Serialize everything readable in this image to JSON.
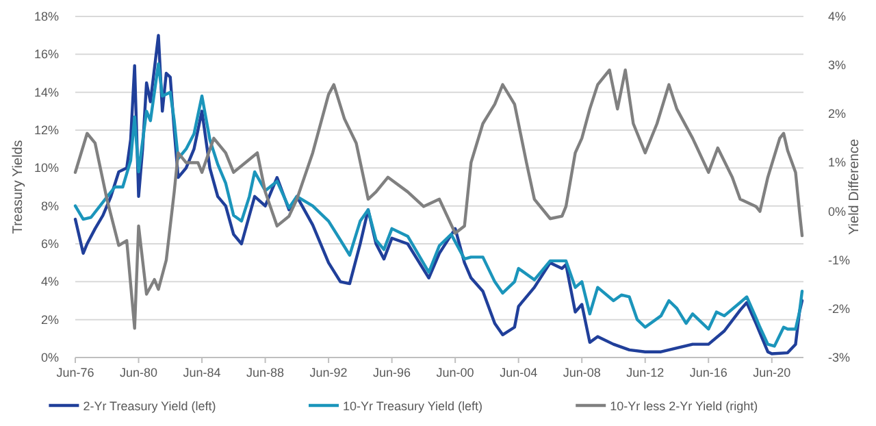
{
  "chart_data": {
    "type": "line",
    "ylabel": "Treasury Yields",
    "y2label": "Yield Difference",
    "xlim": [
      "1976-06",
      "2022-06"
    ],
    "xticks": [
      {
        "value": "1976-06",
        "label": "Jun-76"
      },
      {
        "value": "1980-06",
        "label": "Jun-80"
      },
      {
        "value": "1984-06",
        "label": "Jun-84"
      },
      {
        "value": "1988-06",
        "label": "Jun-88"
      },
      {
        "value": "1992-06",
        "label": "Jun-92"
      },
      {
        "value": "1996-06",
        "label": "Jun-96"
      },
      {
        "value": "2000-06",
        "label": "Jun-00"
      },
      {
        "value": "2004-06",
        "label": "Jun-04"
      },
      {
        "value": "2008-06",
        "label": "Jun-08"
      },
      {
        "value": "2012-06",
        "label": "Jun-12"
      },
      {
        "value": "2016-06",
        "label": "Jun-16"
      },
      {
        "value": "2020-06",
        "label": "Jun-20"
      }
    ],
    "ylim": [
      0,
      18
    ],
    "yticks": [
      {
        "value": 0,
        "label": "0%"
      },
      {
        "value": 2,
        "label": "2%"
      },
      {
        "value": 4,
        "label": "4%"
      },
      {
        "value": 6,
        "label": "6%"
      },
      {
        "value": 8,
        "label": "8%"
      },
      {
        "value": 10,
        "label": "10%"
      },
      {
        "value": 12,
        "label": "12%"
      },
      {
        "value": 14,
        "label": "14%"
      },
      {
        "value": 16,
        "label": "16%"
      },
      {
        "value": 18,
        "label": "18%"
      }
    ],
    "y2lim": [
      -3,
      4
    ],
    "y2ticks": [
      {
        "value": -3,
        "label": "-3%"
      },
      {
        "value": -2,
        "label": "-2%"
      },
      {
        "value": -1,
        "label": "-1%"
      },
      {
        "value": 0,
        "label": "0%"
      },
      {
        "value": 1,
        "label": "1%"
      },
      {
        "value": 2,
        "label": "2%"
      },
      {
        "value": 3,
        "label": "3%"
      },
      {
        "value": 4,
        "label": "4%"
      }
    ],
    "grid": "y",
    "legend": "bottom",
    "line_style": "solid",
    "marker": "none",
    "series": [
      {
        "name": "2-Yr Treasury Yield (left)",
        "color": "#203f9a",
        "x": [
          "1976-06",
          "1976-12",
          "1977-03",
          "1977-09",
          "1978-03",
          "1978-09",
          "1979-03",
          "1979-09",
          "1979-12",
          "1980-03",
          "1980-06",
          "1980-09",
          "1980-12",
          "1981-03",
          "1981-09",
          "1981-12",
          "1982-03",
          "1982-06",
          "1982-09",
          "1982-12",
          "1983-06",
          "1983-12",
          "1984-06",
          "1984-12",
          "1985-06",
          "1985-12",
          "1986-06",
          "1986-12",
          "1987-06",
          "1987-10",
          "1988-06",
          "1989-03",
          "1989-12",
          "1990-06",
          "1991-06",
          "1992-06",
          "1993-03",
          "1993-10",
          "1994-06",
          "1994-12",
          "1995-06",
          "1995-12",
          "1996-06",
          "1997-06",
          "1998-10",
          "1999-06",
          "2000-06",
          "2001-01",
          "2001-06",
          "2002-03",
          "2002-12",
          "2003-06",
          "2004-03",
          "2004-06",
          "2005-06",
          "2006-06",
          "2007-03",
          "2007-06",
          "2008-01",
          "2008-06",
          "2008-12",
          "2009-06",
          "2010-06",
          "2011-06",
          "2012-06",
          "2013-06",
          "2014-06",
          "2015-06",
          "2016-06",
          "2017-06",
          "2018-06",
          "2018-11",
          "2019-06",
          "2020-03",
          "2020-06",
          "2021-06",
          "2021-12",
          "2022-03",
          "2022-05"
        ],
        "values": [
          7.3,
          5.5,
          6.0,
          6.8,
          7.5,
          8.5,
          9.8,
          10.0,
          11.5,
          15.4,
          8.5,
          11.0,
          14.5,
          13.5,
          17.0,
          13.0,
          15.0,
          14.8,
          12.0,
          9.5,
          10.0,
          11.0,
          13.0,
          10.0,
          8.5,
          8.0,
          6.5,
          6.0,
          7.5,
          8.5,
          8.0,
          9.5,
          7.8,
          8.5,
          7.0,
          5.0,
          4.0,
          3.9,
          6.0,
          7.8,
          6.0,
          5.2,
          6.3,
          6.0,
          4.2,
          5.5,
          6.8,
          5.0,
          4.2,
          3.5,
          1.8,
          1.2,
          1.6,
          2.7,
          3.7,
          5.0,
          4.7,
          4.9,
          2.4,
          2.8,
          0.8,
          1.1,
          0.7,
          0.4,
          0.3,
          0.3,
          0.5,
          0.7,
          0.7,
          1.4,
          2.5,
          2.9,
          1.8,
          0.3,
          0.2,
          0.25,
          0.7,
          2.4,
          3.0
        ]
      },
      {
        "name": "10-Yr Treasury Yield (left)",
        "color": "#1b95bb",
        "x": [
          "1976-06",
          "1976-12",
          "1977-06",
          "1978-03",
          "1978-12",
          "1979-06",
          "1979-12",
          "1980-03",
          "1980-06",
          "1980-12",
          "1981-03",
          "1981-09",
          "1981-12",
          "1982-06",
          "1982-09",
          "1982-12",
          "1983-06",
          "1983-12",
          "1984-06",
          "1984-12",
          "1985-06",
          "1985-12",
          "1986-06",
          "1986-12",
          "1987-06",
          "1987-10",
          "1988-06",
          "1989-03",
          "1989-12",
          "1990-06",
          "1991-06",
          "1992-06",
          "1993-03",
          "1993-10",
          "1994-06",
          "1994-12",
          "1995-06",
          "1995-12",
          "1996-06",
          "1997-06",
          "1998-10",
          "1999-06",
          "2000-03",
          "2001-01",
          "2001-06",
          "2002-03",
          "2002-12",
          "2003-06",
          "2004-03",
          "2004-06",
          "2005-06",
          "2006-06",
          "2007-06",
          "2008-01",
          "2008-06",
          "2008-12",
          "2009-06",
          "2010-06",
          "2010-12",
          "2011-06",
          "2011-12",
          "2012-06",
          "2013-06",
          "2013-12",
          "2014-06",
          "2015-01",
          "2015-06",
          "2016-06",
          "2016-12",
          "2017-06",
          "2018-06",
          "2018-11",
          "2019-06",
          "2019-09",
          "2020-03",
          "2020-08",
          "2021-03",
          "2021-06",
          "2021-12",
          "2022-03",
          "2022-05"
        ],
        "values": [
          8.0,
          7.3,
          7.4,
          8.2,
          9.0,
          9.0,
          10.4,
          12.7,
          9.8,
          13.0,
          12.5,
          15.5,
          13.8,
          14.0,
          12.5,
          10.5,
          11.0,
          11.8,
          13.8,
          11.5,
          10.2,
          9.2,
          7.5,
          7.2,
          8.5,
          9.8,
          8.8,
          9.3,
          7.9,
          8.5,
          8.0,
          7.2,
          6.2,
          5.4,
          7.2,
          7.8,
          6.2,
          5.7,
          6.8,
          6.4,
          4.5,
          5.9,
          6.5,
          5.2,
          5.3,
          5.3,
          4.0,
          3.4,
          4.0,
          4.7,
          4.1,
          5.1,
          5.1,
          3.7,
          4.0,
          2.3,
          3.7,
          3.0,
          3.3,
          3.2,
          2.0,
          1.6,
          2.2,
          3.0,
          2.6,
          1.8,
          2.3,
          1.5,
          2.4,
          2.2,
          2.9,
          3.2,
          2.1,
          1.6,
          0.7,
          0.6,
          1.6,
          1.5,
          1.5,
          2.4,
          3.5
        ]
      },
      {
        "name": "10-Yr less 2-Yr Yield (right)",
        "color": "#808080",
        "axis": "y2",
        "x": [
          "1976-06",
          "1977-03",
          "1977-09",
          "1978-06",
          "1979-03",
          "1979-09",
          "1980-03",
          "1980-06",
          "1980-12",
          "1981-06",
          "1981-09",
          "1982-03",
          "1982-09",
          "1982-12",
          "1983-06",
          "1984-03",
          "1984-06",
          "1985-03",
          "1985-12",
          "1986-06",
          "1987-03",
          "1987-12",
          "1988-06",
          "1989-03",
          "1989-12",
          "1990-06",
          "1991-06",
          "1992-06",
          "1992-10",
          "1993-06",
          "1994-03",
          "1994-12",
          "1995-06",
          "1996-03",
          "1997-06",
          "1998-06",
          "1999-06",
          "2000-06",
          "2001-01",
          "2001-06",
          "2002-03",
          "2002-12",
          "2003-06",
          "2004-03",
          "2004-12",
          "2005-06",
          "2006-06",
          "2007-03",
          "2007-06",
          "2008-01",
          "2008-06",
          "2008-12",
          "2009-06",
          "2010-03",
          "2010-09",
          "2011-03",
          "2011-09",
          "2012-06",
          "2013-03",
          "2013-12",
          "2014-06",
          "2015-06",
          "2016-06",
          "2017-01",
          "2017-12",
          "2018-06",
          "2019-06",
          "2019-09",
          "2020-03",
          "2020-12",
          "2021-03",
          "2021-06",
          "2021-12",
          "2022-03",
          "2022-05"
        ],
        "values": [
          0.8,
          1.6,
          1.4,
          0.25,
          -0.7,
          -0.6,
          -2.4,
          -0.3,
          -1.7,
          -1.4,
          -1.6,
          -1.0,
          0.4,
          1.2,
          1.0,
          1.0,
          0.8,
          1.5,
          1.2,
          0.8,
          1.0,
          1.2,
          0.4,
          -0.3,
          -0.1,
          0.25,
          1.2,
          2.4,
          2.6,
          1.9,
          1.4,
          0.25,
          0.4,
          0.7,
          0.4,
          0.1,
          0.25,
          -0.45,
          -0.3,
          1.0,
          1.8,
          2.2,
          2.6,
          2.2,
          1.0,
          0.25,
          -0.15,
          -0.1,
          0.1,
          1.2,
          1.5,
          2.1,
          2.6,
          2.9,
          2.1,
          2.9,
          1.8,
          1.2,
          1.8,
          2.6,
          2.1,
          1.5,
          0.8,
          1.3,
          0.7,
          0.25,
          0.1,
          0,
          0.7,
          1.5,
          1.6,
          1.25,
          0.8,
          0,
          -0.5
        ]
      }
    ]
  }
}
